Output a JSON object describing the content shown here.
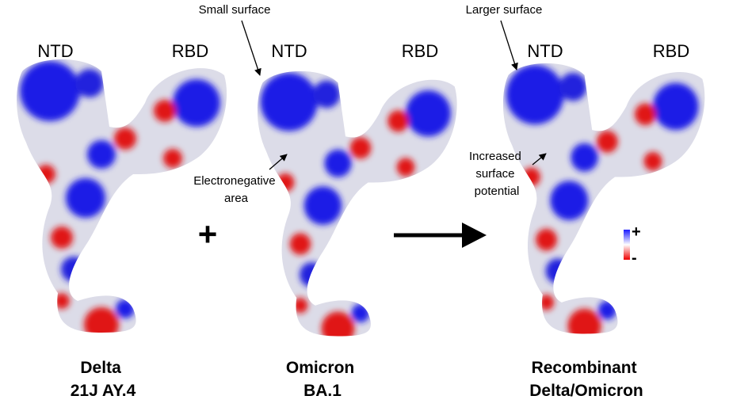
{
  "panels": [
    {
      "ntd": "NTD",
      "rbd": "RBD",
      "caption": [
        "Delta",
        "21J AY.4"
      ]
    },
    {
      "ntd": "NTD",
      "rbd": "RBD",
      "caption": [
        "Omicron",
        "BA.1"
      ]
    },
    {
      "ntd": "NTD",
      "rbd": "RBD",
      "caption": [
        "Recombinant",
        "Delta/Omicron"
      ]
    }
  ],
  "operators": {
    "plus": "+"
  },
  "annotations": {
    "small_surface": "Small surface",
    "larger_surface": "Larger surface",
    "electronegative": [
      "Electronegative",
      "area"
    ],
    "increased": [
      "Increased",
      "surface",
      "potential"
    ]
  },
  "legend": {
    "positive": "+",
    "negative": "-"
  }
}
